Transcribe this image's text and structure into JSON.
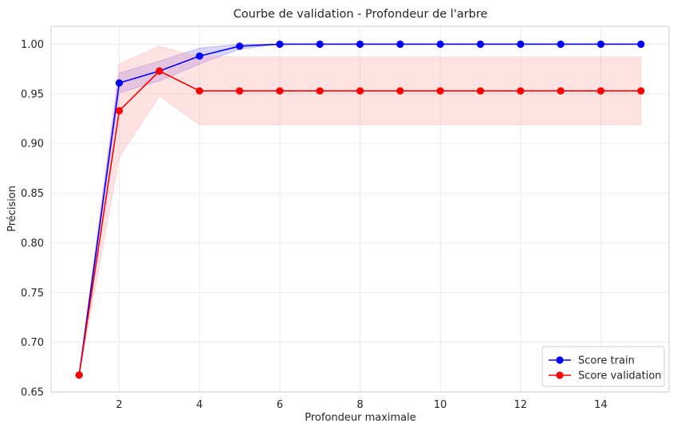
{
  "chart_data": {
    "type": "line",
    "title": "Courbe de validation - Profondeur de l'arbre",
    "xlabel": "Profondeur maximale",
    "ylabel": "Précision",
    "xlim": [
      0.3,
      15.7
    ],
    "ylim": [
      0.65,
      1.018
    ],
    "x_ticks": [
      2,
      4,
      6,
      8,
      10,
      12,
      14
    ],
    "x_tick_labels": [
      "2",
      "4",
      "6",
      "8",
      "10",
      "12",
      "14"
    ],
    "y_ticks": [
      0.65,
      0.7,
      0.75,
      0.8,
      0.85,
      0.9,
      0.95,
      1.0
    ],
    "y_tick_labels": [
      "0.65",
      "0.70",
      "0.75",
      "0.80",
      "0.85",
      "0.90",
      "0.95",
      "1.00"
    ],
    "grid": true,
    "legend_position": "bottom-right",
    "x": [
      1,
      2,
      3,
      4,
      5,
      6,
      7,
      8,
      9,
      10,
      11,
      12,
      13,
      14,
      15
    ],
    "series": [
      {
        "name": "Score train",
        "color": "#0000ff",
        "band_color": "#7b68ee",
        "values": [
          0.667,
          0.961,
          0.973,
          0.988,
          0.998,
          1.0,
          1.0,
          1.0,
          1.0,
          1.0,
          1.0,
          1.0,
          1.0,
          1.0,
          1.0
        ],
        "lower": [
          0.667,
          0.951,
          0.963,
          0.98,
          0.995,
          1.0,
          1.0,
          1.0,
          1.0,
          1.0,
          1.0,
          1.0,
          1.0,
          1.0,
          1.0
        ],
        "upper": [
          0.667,
          0.971,
          0.983,
          0.996,
          1.0,
          1.0,
          1.0,
          1.0,
          1.0,
          1.0,
          1.0,
          1.0,
          1.0,
          1.0,
          1.0
        ]
      },
      {
        "name": "Score validation",
        "color": "#ff0000",
        "band_color": "#ff9999",
        "values": [
          0.667,
          0.933,
          0.973,
          0.953,
          0.953,
          0.953,
          0.953,
          0.953,
          0.953,
          0.953,
          0.953,
          0.953,
          0.953,
          0.953,
          0.953
        ],
        "lower": [
          0.667,
          0.886,
          0.948,
          0.919,
          0.919,
          0.919,
          0.919,
          0.919,
          0.919,
          0.919,
          0.919,
          0.919,
          0.919,
          0.919,
          0.919
        ],
        "upper": [
          0.667,
          0.98,
          0.998,
          0.987,
          0.987,
          0.987,
          0.987,
          0.987,
          0.987,
          0.987,
          0.987,
          0.987,
          0.987,
          0.987,
          0.987
        ]
      }
    ]
  }
}
